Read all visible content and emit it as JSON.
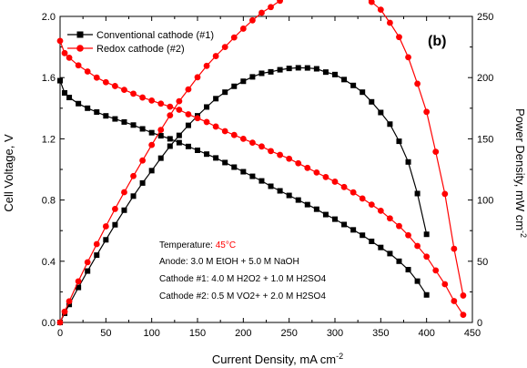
{
  "chart_data": {
    "type": "line",
    "panel_label": "(b)",
    "xlabel": "Current Density, mA cm",
    "xlabel_sup": "-2",
    "ylabel_left": "Cell Voltage, V",
    "ylabel_right": "Power Density, mW cm",
    "ylabel_right_sup": "-2",
    "xlim": [
      0,
      450
    ],
    "ylim_left": [
      0.0,
      2.0
    ],
    "ylim_right": [
      0,
      250
    ],
    "x_ticks": [
      "0",
      "50",
      "100",
      "150",
      "200",
      "250",
      "300",
      "350",
      "400",
      "450"
    ],
    "y_left_ticks": [
      "0.0",
      "0.4",
      "0.8",
      "1.2",
      "1.6",
      "2.0"
    ],
    "y_right_ticks": [
      "0",
      "50",
      "100",
      "150",
      "200",
      "250"
    ],
    "grid": false,
    "legend_position": "top-left",
    "colors": {
      "conventional": "#000000",
      "redox": "#ff0000"
    },
    "series": [
      {
        "name": "Conventional cathode (#1)",
        "axis": "left",
        "marker": "square",
        "x": [
          0,
          5,
          10,
          20,
          30,
          40,
          50,
          60,
          70,
          80,
          90,
          100,
          110,
          120,
          130,
          140,
          150,
          160,
          170,
          180,
          190,
          200,
          210,
          220,
          230,
          240,
          250,
          260,
          270,
          280,
          290,
          300,
          310,
          320,
          330,
          340,
          350,
          360,
          370,
          380,
          390,
          400
        ],
        "y": [
          1.58,
          1.5,
          1.47,
          1.43,
          1.4,
          1.375,
          1.35,
          1.33,
          1.31,
          1.29,
          1.265,
          1.24,
          1.22,
          1.2,
          1.175,
          1.15,
          1.125,
          1.1,
          1.075,
          1.045,
          1.015,
          0.985,
          0.955,
          0.925,
          0.89,
          0.86,
          0.83,
          0.8,
          0.77,
          0.74,
          0.705,
          0.675,
          0.64,
          0.605,
          0.57,
          0.53,
          0.49,
          0.45,
          0.4,
          0.345,
          0.27,
          0.18
        ]
      },
      {
        "name": "Conventional cathode (#1) power",
        "axis": "right",
        "marker": "square",
        "x": [
          0,
          5,
          10,
          20,
          30,
          40,
          50,
          60,
          70,
          80,
          90,
          100,
          110,
          120,
          130,
          140,
          150,
          160,
          170,
          180,
          190,
          200,
          210,
          220,
          230,
          240,
          250,
          260,
          270,
          280,
          290,
          300,
          310,
          320,
          330,
          340,
          350,
          360,
          370,
          380,
          390,
          400
        ],
        "y": [
          0,
          7.5,
          14.7,
          28.6,
          42,
          55,
          67.5,
          79.8,
          91.7,
          103.2,
          113.9,
          124,
          134.2,
          144,
          152.8,
          161,
          168.8,
          176,
          182.8,
          188.1,
          192.9,
          197,
          200.6,
          203.5,
          204.7,
          206.4,
          207.5,
          208,
          207.9,
          207.2,
          204.5,
          202.5,
          198.4,
          193.6,
          188.1,
          180.2,
          171.5,
          162,
          148,
          131.1,
          105.3,
          72
        ]
      },
      {
        "name": "Redox cathode (#2)",
        "axis": "left",
        "marker": "circle",
        "x": [
          0,
          5,
          10,
          20,
          30,
          40,
          50,
          60,
          70,
          80,
          90,
          100,
          110,
          120,
          130,
          140,
          150,
          160,
          170,
          180,
          190,
          200,
          210,
          220,
          230,
          240,
          250,
          260,
          270,
          280,
          290,
          300,
          310,
          320,
          330,
          340,
          350,
          360,
          370,
          380,
          390,
          400,
          410,
          420,
          430,
          440
        ],
        "y": [
          1.84,
          1.76,
          1.73,
          1.68,
          1.64,
          1.6,
          1.57,
          1.545,
          1.52,
          1.495,
          1.47,
          1.45,
          1.43,
          1.41,
          1.39,
          1.36,
          1.335,
          1.31,
          1.28,
          1.25,
          1.225,
          1.2,
          1.175,
          1.15,
          1.12,
          1.095,
          1.07,
          1.04,
          1.01,
          0.98,
          0.95,
          0.92,
          0.885,
          0.85,
          0.81,
          0.77,
          0.73,
          0.68,
          0.63,
          0.57,
          0.5,
          0.43,
          0.34,
          0.25,
          0.14,
          0.05
        ]
      },
      {
        "name": "Redox cathode (#2) power",
        "axis": "right",
        "marker": "circle",
        "x": [
          0,
          5,
          10,
          20,
          30,
          40,
          50,
          60,
          70,
          80,
          90,
          100,
          110,
          120,
          130,
          140,
          150,
          160,
          170,
          180,
          190,
          200,
          210,
          220,
          230,
          240,
          250,
          260,
          270,
          280,
          290,
          300,
          310,
          320,
          330,
          340,
          350,
          360,
          370,
          380,
          390,
          400,
          410,
          420,
          430,
          440
        ],
        "y": [
          0,
          8.8,
          17.3,
          33.6,
          49.2,
          64,
          78.5,
          92.7,
          106.4,
          119.6,
          132.3,
          145,
          157.3,
          169.2,
          180.7,
          190.4,
          200.3,
          209.6,
          217.6,
          225,
          232.8,
          240,
          246.8,
          253,
          257.6,
          262.8,
          267.5,
          270.4,
          272.7,
          274.4,
          275.5,
          276,
          274.4,
          272,
          267.3,
          261.8,
          255.5,
          244.8,
          233.1,
          216.6,
          195,
          172,
          139.4,
          105,
          60.2,
          22
        ]
      }
    ],
    "annotations": {
      "temperature_label": "Temperature: ",
      "temperature_value": "45°C",
      "anode": "Anode: 3.0 M EtOH + 5.0 M NaOH",
      "cathode1": "Cathode #1: 4.0 M H2O2 + 1.0 M H2SO4",
      "cathode2": "Cathode #2: 0.5 M VO2+ + 2.0 M H2SO4"
    }
  }
}
